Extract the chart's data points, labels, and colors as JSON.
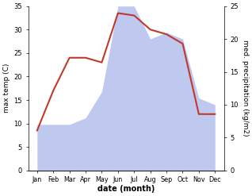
{
  "months": [
    "Jan",
    "Feb",
    "Mar",
    "Apr",
    "May",
    "Jun",
    "Jul",
    "Aug",
    "Sep",
    "Oct",
    "Nov",
    "Dec"
  ],
  "temperature": [
    8.5,
    17.0,
    24.0,
    24.0,
    23.0,
    33.5,
    33.0,
    30.0,
    29.0,
    27.0,
    12.0,
    12.0
  ],
  "precipitation": [
    7.0,
    7.0,
    7.0,
    8.0,
    12.0,
    25.0,
    25.0,
    20.0,
    21.0,
    20.0,
    11.0,
    10.0
  ],
  "temp_color": "#c0392b",
  "precip_color": "#b8c4ee",
  "temp_ylim": [
    0,
    35
  ],
  "precip_ylim": [
    0,
    25
  ],
  "temp_yticks": [
    0,
    5,
    10,
    15,
    20,
    25,
    30,
    35
  ],
  "precip_yticks": [
    0,
    5,
    10,
    15,
    20,
    25
  ],
  "xlabel": "date (month)",
  "ylabel_left": "max temp (C)",
  "ylabel_right": "med. precipitation (kg/m2)",
  "bg_color": "#ffffff",
  "fig_width": 3.18,
  "fig_height": 2.47,
  "dpi": 100
}
